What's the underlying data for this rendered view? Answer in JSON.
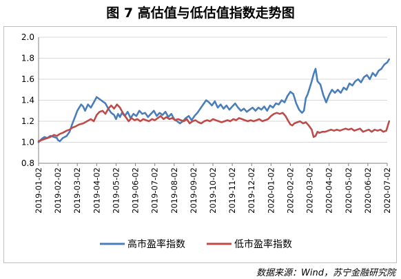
{
  "header": {
    "title": "图 7  高估值与低估值指数走势图"
  },
  "footer": {
    "source": "数据来源：Wind，苏宁金融研究院"
  },
  "colors": {
    "high": "#4A7EBB",
    "low": "#BE4B48",
    "grid": "#d9d9d9",
    "axis": "#808080"
  },
  "chart_data": {
    "type": "line",
    "title": "图 7  高估值与低估值指数走势图",
    "xlabel": "",
    "ylabel": "",
    "ylim": [
      0.8,
      2.0
    ],
    "yticks": [
      "0.8",
      "1.0",
      "1.2",
      "1.4",
      "1.6",
      "1.8",
      "2.0"
    ],
    "categories": [
      "2019-01-02",
      "2019-02-02",
      "2019-03-02",
      "2019-04-02",
      "2019-05-02",
      "2019-06-02",
      "2019-07-02",
      "2019-08-02",
      "2019-09-02",
      "2019-10-02",
      "2019-11-02",
      "2019-12-02",
      "2020-01-02",
      "2020-02-02",
      "2020-03-02",
      "2020-04-02",
      "2020-05-02",
      "2020-06-02",
      "2020-07-02"
    ],
    "grid": true,
    "legend_position": "bottom",
    "series": [
      {
        "name": "高市盈率指数",
        "color": "#4A7EBB",
        "x": [
          0,
          0.15,
          0.3,
          0.45,
          0.6,
          0.8,
          0.95,
          1.0,
          1.1,
          1.25,
          1.45,
          1.6,
          1.75,
          1.9,
          2.0,
          2.1,
          2.2,
          2.3,
          2.4,
          2.55,
          2.7,
          2.85,
          3.0,
          3.15,
          3.3,
          3.45,
          3.6,
          3.75,
          3.9,
          4.0,
          4.1,
          4.2,
          4.3,
          4.45,
          4.6,
          4.75,
          4.9,
          5.05,
          5.2,
          5.35,
          5.5,
          5.65,
          5.8,
          5.95,
          6.1,
          6.25,
          6.4,
          6.55,
          6.7,
          6.85,
          7.0,
          7.15,
          7.3,
          7.45,
          7.6,
          7.75,
          7.9,
          8.05,
          8.2,
          8.35,
          8.5,
          8.65,
          8.8,
          8.95,
          9.1,
          9.25,
          9.4,
          9.55,
          9.7,
          9.85,
          10.0,
          10.15,
          10.3,
          10.45,
          10.6,
          10.75,
          10.9,
          11.05,
          11.2,
          11.35,
          11.5,
          11.65,
          11.8,
          11.95,
          12.1,
          12.25,
          12.4,
          12.55,
          12.7,
          12.85,
          13.0,
          13.15,
          13.3,
          13.45,
          13.6,
          13.7,
          13.8,
          13.9,
          14.0,
          14.1,
          14.2,
          14.3,
          14.4,
          14.55,
          14.7,
          14.85,
          15.0,
          15.15,
          15.3,
          15.45,
          15.6,
          15.75,
          15.9,
          16.05,
          16.2,
          16.35,
          16.5,
          16.65,
          16.8,
          16.95,
          17.1,
          17.25,
          17.4,
          17.55,
          17.7,
          17.85,
          18.0,
          18.1
        ],
        "values": [
          1.0,
          1.03,
          1.05,
          1.04,
          1.06,
          1.05,
          1.04,
          1.02,
          1.01,
          1.04,
          1.06,
          1.1,
          1.18,
          1.25,
          1.3,
          1.33,
          1.36,
          1.34,
          1.3,
          1.36,
          1.33,
          1.38,
          1.43,
          1.41,
          1.39,
          1.37,
          1.32,
          1.28,
          1.26,
          1.22,
          1.27,
          1.24,
          1.28,
          1.25,
          1.29,
          1.23,
          1.27,
          1.25,
          1.3,
          1.27,
          1.28,
          1.24,
          1.27,
          1.3,
          1.25,
          1.28,
          1.26,
          1.29,
          1.24,
          1.27,
          1.22,
          1.2,
          1.18,
          1.2,
          1.23,
          1.25,
          1.21,
          1.25,
          1.28,
          1.32,
          1.36,
          1.4,
          1.38,
          1.35,
          1.39,
          1.33,
          1.36,
          1.32,
          1.35,
          1.31,
          1.34,
          1.37,
          1.33,
          1.3,
          1.32,
          1.29,
          1.31,
          1.33,
          1.3,
          1.33,
          1.31,
          1.34,
          1.3,
          1.35,
          1.33,
          1.37,
          1.36,
          1.4,
          1.38,
          1.44,
          1.48,
          1.46,
          1.37,
          1.31,
          1.28,
          1.3,
          1.42,
          1.46,
          1.52,
          1.58,
          1.65,
          1.7,
          1.58,
          1.55,
          1.45,
          1.38,
          1.45,
          1.5,
          1.47,
          1.5,
          1.47,
          1.52,
          1.5,
          1.56,
          1.54,
          1.58,
          1.6,
          1.57,
          1.62,
          1.64,
          1.6,
          1.66,
          1.63,
          1.68,
          1.7,
          1.74,
          1.76,
          1.79
        ]
      },
      {
        "name": "低市盈率指数",
        "color": "#BE4B48",
        "x": [
          0,
          0.15,
          0.3,
          0.45,
          0.6,
          0.8,
          0.95,
          1.1,
          1.25,
          1.45,
          1.6,
          1.75,
          1.9,
          2.1,
          2.3,
          2.5,
          2.7,
          2.85,
          3.0,
          3.15,
          3.3,
          3.45,
          3.6,
          3.75,
          3.9,
          4.05,
          4.2,
          4.35,
          4.5,
          4.65,
          4.8,
          4.95,
          5.1,
          5.25,
          5.4,
          5.55,
          5.7,
          5.85,
          6.0,
          6.15,
          6.3,
          6.45,
          6.6,
          6.75,
          6.9,
          7.05,
          7.2,
          7.35,
          7.5,
          7.65,
          7.8,
          7.95,
          8.1,
          8.25,
          8.4,
          8.55,
          8.7,
          8.85,
          9.0,
          9.15,
          9.3,
          9.45,
          9.6,
          9.75,
          9.9,
          10.05,
          10.2,
          10.35,
          10.5,
          10.65,
          10.8,
          10.95,
          11.1,
          11.25,
          11.4,
          11.55,
          11.7,
          11.85,
          12.0,
          12.15,
          12.3,
          12.45,
          12.6,
          12.75,
          12.9,
          13.0,
          13.1,
          13.2,
          13.35,
          13.5,
          13.65,
          13.8,
          13.95,
          14.1,
          14.2,
          14.3,
          14.4,
          14.5,
          14.65,
          14.8,
          14.95,
          15.1,
          15.25,
          15.4,
          15.55,
          15.7,
          15.85,
          16.0,
          16.15,
          16.3,
          16.45,
          16.6,
          16.75,
          16.9,
          17.05,
          17.2,
          17.35,
          17.5,
          17.65,
          17.8,
          17.95,
          18.1
        ],
        "values": [
          1.01,
          1.02,
          1.03,
          1.04,
          1.05,
          1.07,
          1.06,
          1.08,
          1.09,
          1.11,
          1.12,
          1.14,
          1.15,
          1.17,
          1.18,
          1.2,
          1.22,
          1.2,
          1.26,
          1.29,
          1.3,
          1.27,
          1.32,
          1.35,
          1.32,
          1.36,
          1.33,
          1.28,
          1.24,
          1.2,
          1.23,
          1.21,
          1.22,
          1.2,
          1.22,
          1.21,
          1.2,
          1.22,
          1.21,
          1.23,
          1.25,
          1.22,
          1.24,
          1.22,
          1.23,
          1.21,
          1.22,
          1.21,
          1.2,
          1.22,
          1.18,
          1.2,
          1.21,
          1.19,
          1.18,
          1.2,
          1.21,
          1.2,
          1.22,
          1.21,
          1.2,
          1.19,
          1.2,
          1.21,
          1.2,
          1.22,
          1.21,
          1.23,
          1.22,
          1.21,
          1.2,
          1.21,
          1.2,
          1.21,
          1.22,
          1.2,
          1.21,
          1.22,
          1.25,
          1.27,
          1.28,
          1.27,
          1.28,
          1.25,
          1.2,
          1.17,
          1.16,
          1.18,
          1.19,
          1.2,
          1.18,
          1.19,
          1.16,
          1.12,
          1.05,
          1.06,
          1.1,
          1.09,
          1.1,
          1.1,
          1.11,
          1.12,
          1.11,
          1.12,
          1.11,
          1.12,
          1.13,
          1.12,
          1.13,
          1.11,
          1.12,
          1.13,
          1.1,
          1.11,
          1.12,
          1.1,
          1.12,
          1.11,
          1.12,
          1.1,
          1.11,
          1.2
        ]
      }
    ]
  }
}
